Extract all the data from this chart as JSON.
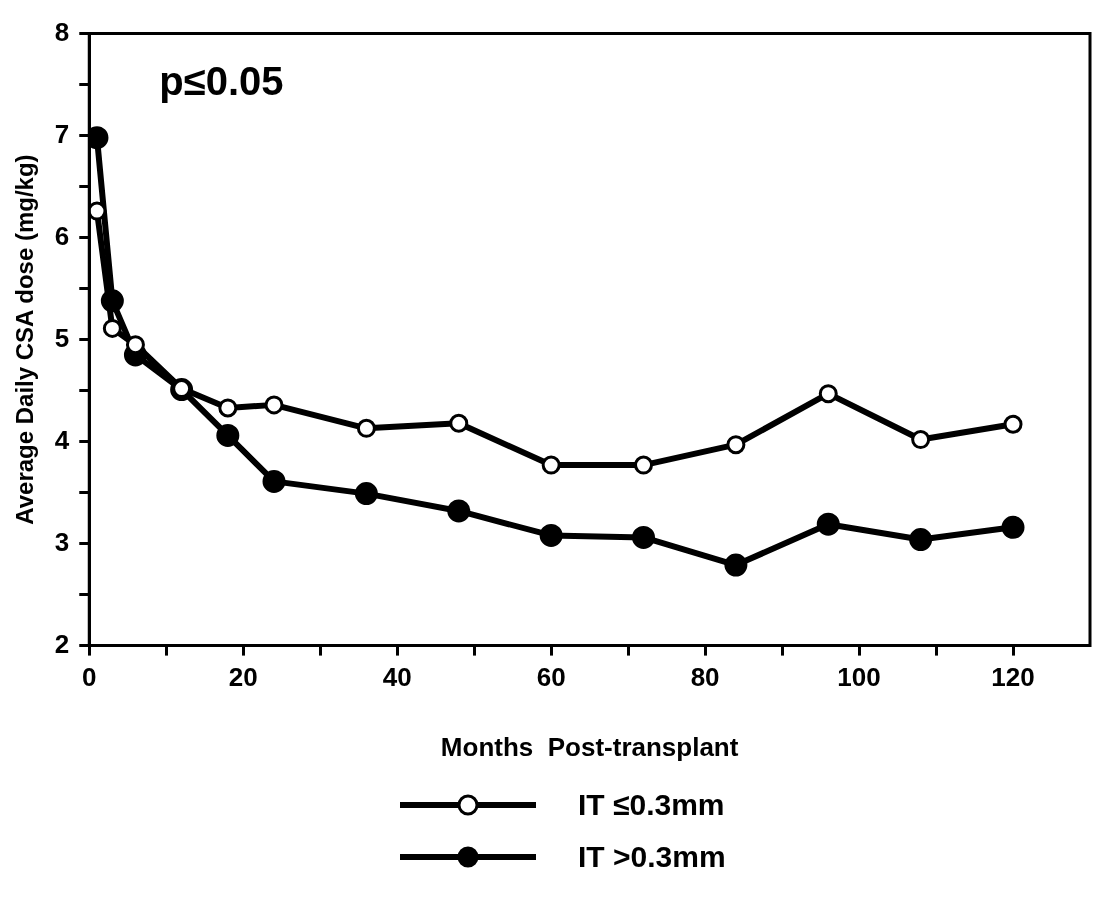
{
  "chart_data": {
    "type": "line",
    "xlabel": "Months  Post-transplant",
    "ylabel": "Average Daily CSA dose (mg/kg)",
    "annotations": [
      "p≤0.05"
    ],
    "x": [
      1,
      3,
      6,
      12,
      18,
      24,
      36,
      48,
      60,
      72,
      84,
      96,
      108,
      120
    ],
    "series": [
      {
        "name": "IT ≤0.3mm",
        "color": "#000000",
        "values": [
          6.26,
          5.11,
          4.95,
          4.52,
          4.33,
          4.36,
          4.13,
          4.18,
          3.77,
          3.77,
          3.97,
          4.47,
          4.02,
          4.17
        ]
      },
      {
        "name": "IT >0.3mm",
        "color": "#000000",
        "values": [
          6.98,
          5.38,
          4.85,
          4.51,
          4.06,
          3.61,
          3.49,
          3.32,
          3.08,
          3.06,
          2.79,
          3.19,
          3.04,
          3.16
        ]
      }
    ],
    "xlim": [
      0,
      130
    ],
    "xticks": [
      0,
      {
        "value": 10,
        "label": null
      },
      20,
      {
        "value": 30,
        "label": null
      },
      40,
      {
        "value": 50,
        "label": null
      },
      60,
      {
        "value": 70,
        "label": null
      },
      80,
      {
        "value": 90,
        "label": null
      },
      100,
      {
        "value": 110,
        "label": null
      },
      120
    ],
    "ylim": [
      2,
      8
    ],
    "yticks": [
      2,
      {
        "value": 2.5,
        "label": null
      },
      3,
      {
        "value": 3.5,
        "label": null
      },
      4,
      {
        "value": 4.5,
        "label": null
      },
      5,
      {
        "value": 5.5,
        "label": null
      },
      6,
      {
        "value": 6.5,
        "label": null
      },
      7,
      {
        "value": 7.5,
        "label": null
      },
      8
    ],
    "grid": false,
    "legend": "bottom",
    "marker": "circle",
    "line_style": "solid"
  }
}
